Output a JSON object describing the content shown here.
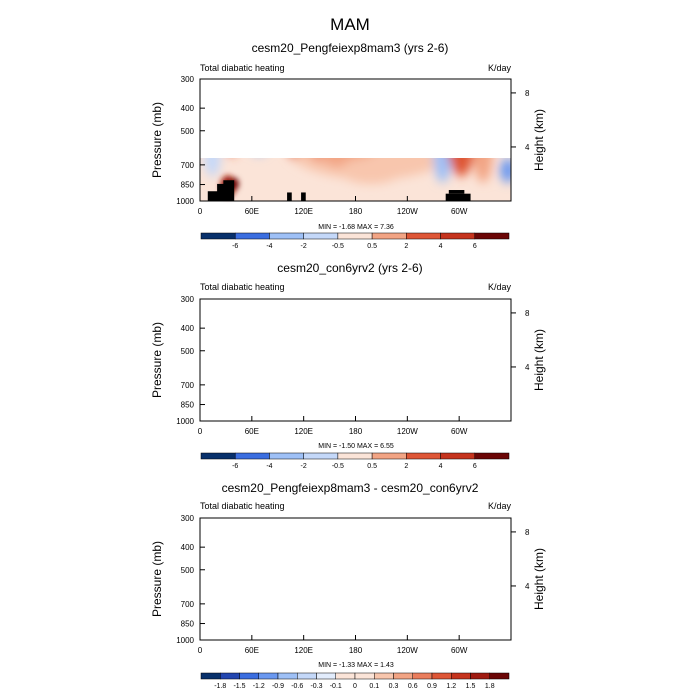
{
  "page_title": "MAM",
  "colors": {
    "diverging_scale": [
      "#08306b",
      "#2346b0",
      "#3b6ee0",
      "#6a98f0",
      "#9ec0f6",
      "#c4d8f9",
      "#e2ecfc",
      "#fbe4d8",
      "#f8c6ad",
      "#f2a484",
      "#ea7d5c",
      "#de5636",
      "#c5331d",
      "#a01a10",
      "#6b0606"
    ],
    "land_mask": "#000000"
  },
  "chart_data": [
    {
      "type": "heatmap",
      "title": "cesm20_Pengfeiexp8mam3 (yrs 2-6)",
      "left_label": "Total diabatic heating",
      "units": "K/day",
      "ylabel": "Pressure (mb)",
      "ylabel_right": "Height (km)",
      "xticks": [
        "0",
        "60E",
        "120E",
        "180",
        "120W",
        "60W"
      ],
      "xtick_values": [
        0,
        60,
        120,
        180,
        240,
        300
      ],
      "xlim": [
        0,
        360
      ],
      "yticks": [
        "300",
        "400",
        "500",
        "700",
        "850",
        "1000"
      ],
      "ytick_values": [
        300,
        400,
        500,
        700,
        850,
        1000
      ],
      "ylim": [
        300,
        1000
      ],
      "right_ticks": [
        "8",
        "4"
      ],
      "right_tick_values": [
        8,
        4
      ],
      "stats": "MIN = -1.68  MAX =  7.36",
      "colorbar_labels": [
        "-6",
        "-4",
        "-2",
        "-0.5",
        "0.5",
        "2",
        "4",
        "6"
      ]
    },
    {
      "type": "heatmap",
      "title": "cesm20_con6yrv2 (yrs 2-6)",
      "left_label": "Total diabatic heating",
      "units": "K/day",
      "ylabel": "Pressure (mb)",
      "ylabel_right": "Height (km)",
      "xticks": [
        "0",
        "60E",
        "120E",
        "180",
        "120W",
        "60W"
      ],
      "xtick_values": [
        0,
        60,
        120,
        180,
        240,
        300
      ],
      "xlim": [
        0,
        360
      ],
      "yticks": [
        "300",
        "400",
        "500",
        "700",
        "850",
        "1000"
      ],
      "ytick_values": [
        300,
        400,
        500,
        700,
        850,
        1000
      ],
      "ylim": [
        300,
        1000
      ],
      "right_ticks": [
        "8",
        "4"
      ],
      "right_tick_values": [
        8,
        4
      ],
      "stats": "MIN = -1.50  MAX =  6.55",
      "colorbar_labels": [
        "-6",
        "-4",
        "-2",
        "-0.5",
        "0.5",
        "2",
        "4",
        "6"
      ]
    },
    {
      "type": "heatmap",
      "title": "cesm20_Pengfeiexp8mam3 - cesm20_con6yrv2",
      "left_label": "Total diabatic heating",
      "units": "K/day",
      "ylabel": "Pressure (mb)",
      "ylabel_right": "Height (km)",
      "xticks": [
        "0",
        "60E",
        "120E",
        "180",
        "120W",
        "60W"
      ],
      "xtick_values": [
        0,
        60,
        120,
        180,
        240,
        300
      ],
      "xlim": [
        0,
        360
      ],
      "yticks": [
        "300",
        "400",
        "500",
        "700",
        "850",
        "1000"
      ],
      "ytick_values": [
        300,
        400,
        500,
        700,
        850,
        1000
      ],
      "ylim": [
        300,
        1000
      ],
      "right_ticks": [
        "8",
        "4"
      ],
      "right_tick_values": [
        8,
        4
      ],
      "stats": "MIN = -1.33  MAX =  1.43",
      "colorbar_labels": [
        "-1.8",
        "-1.5",
        "-1.2",
        "-0.9",
        "-0.6",
        "-0.3",
        "-0.1",
        "0",
        "0.1",
        "0.3",
        "0.6",
        "0.9",
        "1.2",
        "1.5",
        "1.8"
      ]
    }
  ]
}
